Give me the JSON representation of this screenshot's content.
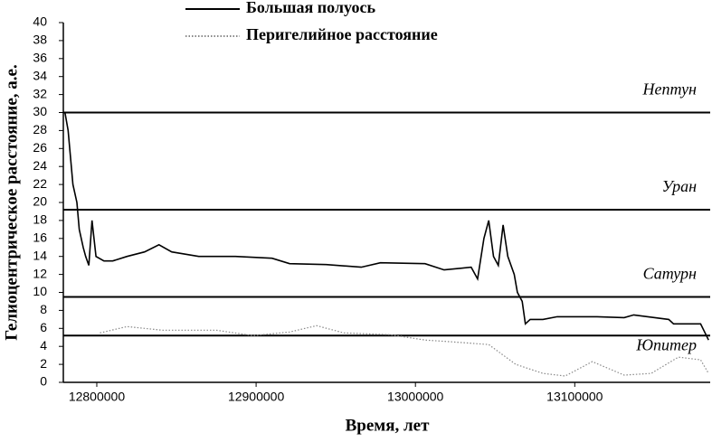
{
  "chart_data": {
    "type": "line",
    "xlabel": "Время, лет",
    "ylabel": "Гелиоцентрическое расстояние, а.е.",
    "xlim": [
      12779000,
      13185000
    ],
    "ylim": [
      0,
      40
    ],
    "xticks": [
      12800000,
      12900000,
      13000000,
      13100000
    ],
    "yticks": [
      0,
      2,
      4,
      6,
      8,
      10,
      12,
      14,
      16,
      18,
      20,
      22,
      24,
      26,
      28,
      30,
      32,
      34,
      36,
      38,
      40
    ],
    "series": [
      {
        "name": "Большая полуось",
        "color": "#000000",
        "dash": "solid",
        "x": [
          12780000,
          12782000,
          12785000,
          12787500,
          12789000,
          12791500,
          12793000,
          12795000,
          12797000,
          12799500,
          12804500,
          12810000,
          12819000,
          12830000,
          12839000,
          12847000,
          12864000,
          12887000,
          12910000,
          12921000,
          12944000,
          12966000,
          12978000,
          13006000,
          13018000,
          13035000,
          13039000,
          13043000,
          13046000,
          13049000,
          13052000,
          13055000,
          13058000,
          13062000,
          13064000,
          13067000,
          13069000,
          13072000,
          13080000,
          13089000,
          13114000,
          13131000,
          13137000,
          13159000,
          13162000,
          13179000,
          13184000
        ],
        "values": [
          30,
          28,
          22,
          20,
          17,
          15,
          14,
          13,
          18,
          14,
          13.5,
          13.5,
          14,
          14.5,
          15.3,
          14.5,
          14,
          14,
          13.8,
          13.2,
          13.1,
          12.8,
          13.3,
          13.2,
          12.5,
          12.8,
          11.5,
          16,
          18,
          14,
          13,
          17.5,
          14,
          12,
          10,
          9,
          6.5,
          7,
          7,
          7.3,
          7.3,
          7.2,
          7.5,
          7,
          6.5,
          6.5,
          4.7
        ]
      },
      {
        "name": "Перигелийное расстояние",
        "color": "#888888",
        "dash": "dotted",
        "x": [
          12802000,
          12819000,
          12841000,
          12875000,
          12898000,
          12921000,
          12938000,
          12955000,
          12984000,
          13006000,
          13023000,
          13046000,
          13063000,
          13080000,
          13094000,
          13111000,
          13131000,
          13148000,
          13165000,
          13179000,
          13184000
        ],
        "values": [
          5.5,
          6.2,
          5.8,
          5.8,
          5.2,
          5.6,
          6.3,
          5.5,
          5.3,
          4.7,
          4.5,
          4.2,
          2,
          1,
          0.7,
          2.3,
          0.8,
          1,
          2.8,
          2.5,
          1
        ]
      }
    ],
    "reference_lines": [
      {
        "label": "Нептун",
        "value": 30
      },
      {
        "label": "Уран",
        "value": 19.2
      },
      {
        "label": "Сатурн",
        "value": 9.5
      },
      {
        "label": "Юпитер",
        "value": 5.2
      }
    ]
  }
}
